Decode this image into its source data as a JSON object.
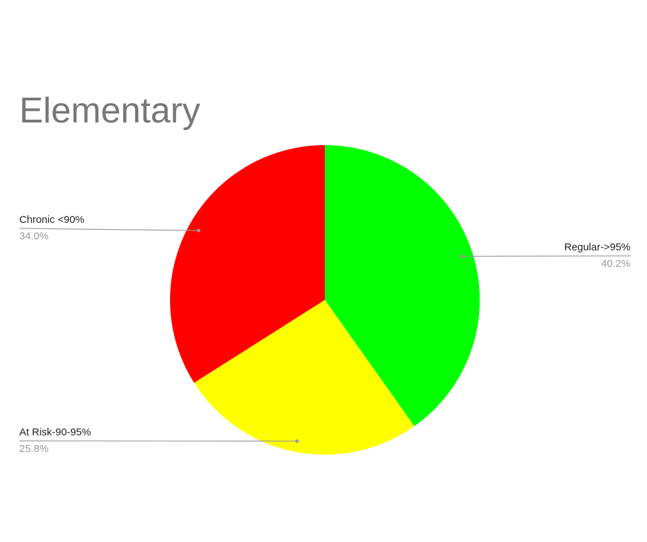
{
  "chart_data": {
    "type": "pie",
    "title": "Elementary",
    "start_angle_deg": 0,
    "direction": "clockwise",
    "slices": [
      {
        "label": "Regular->95%",
        "value": 40.2,
        "percent_label": "40.2%",
        "color": "#00ff00"
      },
      {
        "label": "At Risk-90-95%",
        "value": 25.8,
        "percent_label": "25.8%",
        "color": "#ffff00"
      },
      {
        "label": "Chronic <90%",
        "value": 34.0,
        "percent_label": "34.0%",
        "color": "#ff0000"
      }
    ],
    "legend": "none"
  }
}
